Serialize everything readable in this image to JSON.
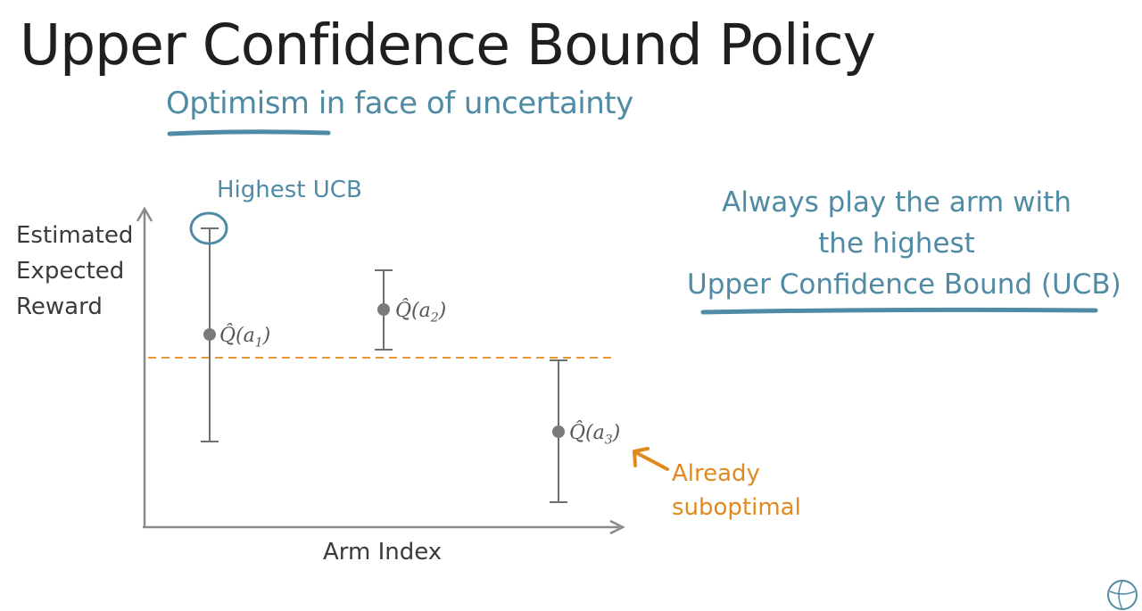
{
  "slide": {
    "title": "Upper Confidence Bound Policy",
    "subtitle": "Optimism in face of uncertainty",
    "right_note": {
      "lines": [
        "Always play the arm with",
        "the highest",
        "Upper Confidence Bound (UCB)"
      ]
    }
  },
  "diagram": {
    "y_axis_label": [
      "Estimated",
      "Expected",
      "Reward"
    ],
    "x_axis_label": "Arm Index",
    "annotations": {
      "highest_ucb": "Highest UCB",
      "already_suboptimal": [
        "Already",
        "suboptimal"
      ]
    },
    "arms": [
      {
        "label_main": "Q̂(a",
        "label_sub": "1",
        "label_close": ")"
      },
      {
        "label_main": "Q̂(a",
        "label_sub": "2",
        "label_close": ")"
      },
      {
        "label_main": "Q̂(a",
        "label_sub": "3",
        "label_close": ")"
      }
    ]
  },
  "colors": {
    "text": "#1f1f1f",
    "accent_blue": "#4f8ba5",
    "accent_orange": "#e08a1e",
    "axis_gray": "#8a8a8a",
    "interval_gray": "#6f6f6f"
  },
  "icons": {
    "corner": "globe-logo-icon"
  }
}
